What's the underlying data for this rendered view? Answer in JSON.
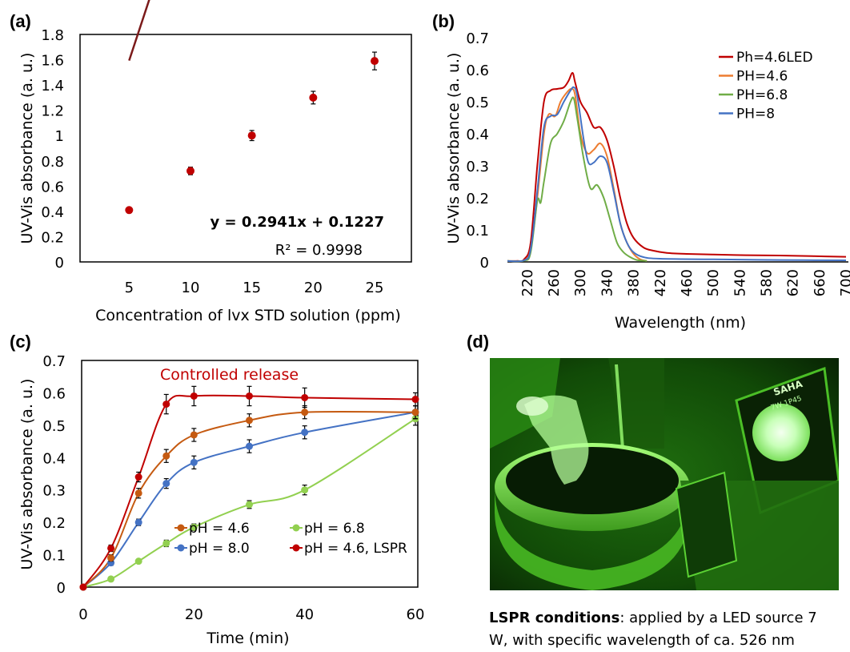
{
  "chart_data": [
    {
      "panel": "(a)",
      "type": "scatter",
      "xlabel": "Concentration of lvx STD solution (ppm)",
      "ylabel": "UV-Vis absorbance (a. u.)",
      "xticks": [
        5,
        10,
        15,
        20,
        25
      ],
      "yticks": [
        "0",
        "0.2",
        "0.4",
        "0.6",
        "0.8",
        "1",
        "1.2",
        "1.4",
        "1.6",
        "1.8"
      ],
      "xlim": [
        1,
        28
      ],
      "ylim": [
        0,
        1.8
      ],
      "x": [
        5,
        10,
        15,
        20,
        25
      ],
      "y": [
        0.41,
        0.72,
        1.0,
        1.3,
        1.59
      ],
      "yerr": [
        0.01,
        0.03,
        0.04,
        0.05,
        0.07
      ],
      "fit": {
        "slope": 0.2941,
        "intercept": 0.1227,
        "equation": "y = 0.2941x + 0.1227",
        "r2": "R² = 0.9998"
      },
      "colors": {
        "marker": "#c00000",
        "line": "#7b1a1a"
      }
    },
    {
      "panel": "(b)",
      "type": "line",
      "xlabel": "Wavelength (nm)",
      "ylabel": "UV-Vis absorbance (a. u.)",
      "xticks": [
        220,
        260,
        300,
        340,
        380,
        420,
        460,
        500,
        540,
        580,
        620,
        660,
        700
      ],
      "yticks": [
        "0",
        "0.1",
        "0.2",
        "0.3",
        "0.4",
        "0.5",
        "0.6",
        "0.7"
      ],
      "xlim": [
        190,
        700
      ],
      "ylim": [
        0,
        0.7
      ],
      "legend": "top-right",
      "series": [
        {
          "name": "Ph=4.6LED",
          "color": "#c00000",
          "x": [
            190,
            205,
            215,
            225,
            235,
            245,
            255,
            265,
            275,
            282,
            288,
            292,
            300,
            310,
            320,
            330,
            340,
            350,
            360,
            370,
            380,
            395,
            410,
            430,
            460,
            500,
            550,
            600,
            650,
            700
          ],
          "y": [
            0.003,
            0.003,
            0.008,
            0.06,
            0.3,
            0.5,
            0.535,
            0.54,
            0.545,
            0.565,
            0.59,
            0.56,
            0.5,
            0.465,
            0.42,
            0.42,
            0.38,
            0.3,
            0.2,
            0.12,
            0.075,
            0.045,
            0.035,
            0.028,
            0.025,
            0.023,
            0.021,
            0.02,
            0.018,
            0.016
          ]
        },
        {
          "name": "PH=4.6",
          "color": "#ed7d31",
          "x": [
            190,
            215,
            225,
            235,
            245,
            252,
            262,
            270,
            280,
            287,
            292,
            300,
            310,
            320,
            330,
            340,
            350,
            360,
            370,
            380,
            390,
            400
          ],
          "y": [
            0.003,
            0.005,
            0.04,
            0.2,
            0.4,
            0.46,
            0.455,
            0.5,
            0.53,
            0.54,
            0.52,
            0.4,
            0.34,
            0.35,
            0.37,
            0.33,
            0.23,
            0.12,
            0.06,
            0.025,
            0.008,
            0.003
          ]
        },
        {
          "name": "PH=6.8",
          "color": "#70ad47",
          "x": [
            190,
            215,
            225,
            235,
            240,
            245,
            255,
            265,
            275,
            285,
            290,
            295,
            305,
            315,
            325,
            335,
            345,
            355,
            365,
            375,
            385,
            400
          ],
          "y": [
            0.003,
            0.004,
            0.03,
            0.19,
            0.185,
            0.25,
            0.37,
            0.4,
            0.44,
            0.5,
            0.51,
            0.45,
            0.32,
            0.23,
            0.24,
            0.2,
            0.13,
            0.06,
            0.03,
            0.015,
            0.006,
            0.003
          ]
        },
        {
          "name": "PH=8",
          "color": "#4472c4",
          "x": [
            190,
            215,
            225,
            235,
            245,
            255,
            265,
            275,
            285,
            290,
            295,
            305,
            312,
            320,
            330,
            340,
            350,
            360,
            370,
            380,
            395,
            420,
            500,
            600,
            700
          ],
          "y": [
            0.003,
            0.005,
            0.04,
            0.22,
            0.42,
            0.455,
            0.46,
            0.5,
            0.535,
            0.545,
            0.52,
            0.38,
            0.31,
            0.31,
            0.33,
            0.31,
            0.22,
            0.12,
            0.06,
            0.03,
            0.015,
            0.01,
            0.008,
            0.006,
            0.005
          ]
        }
      ]
    },
    {
      "panel": "(c)",
      "type": "line",
      "xlabel": "Time (min)",
      "ylabel": "UV-Vis absorbance (a. u.)",
      "xticks": [
        0,
        20,
        40,
        60
      ],
      "yticks": [
        "0",
        "0.1",
        "0.2",
        "0.3",
        "0.4",
        "0.5",
        "0.6",
        "0.7"
      ],
      "xlim": [
        0,
        60
      ],
      "ylim": [
        0,
        0.7
      ],
      "annotation": {
        "text": "Controlled release",
        "color": "#c00000"
      },
      "x": [
        0,
        5,
        10,
        15,
        20,
        30,
        40,
        60
      ],
      "series": [
        {
          "name": "pH = 4.6",
          "color": "#c55a11",
          "y": [
            0,
            0.09,
            0.29,
            0.405,
            0.47,
            0.515,
            0.54,
            0.54
          ],
          "yerr": [
            0,
            0.01,
            0.015,
            0.02,
            0.02,
            0.02,
            0.02,
            0.02
          ]
        },
        {
          "name": "pH = 6.8",
          "color": "#92d050",
          "y": [
            0,
            0.025,
            0.08,
            0.135,
            0.185,
            0.255,
            0.3,
            0.52
          ],
          "yerr": [
            0,
            0.005,
            0.005,
            0.01,
            0.01,
            0.012,
            0.015,
            0.02
          ]
        },
        {
          "name": "pH = 8.0",
          "color": "#4472c4",
          "y": [
            0,
            0.075,
            0.2,
            0.32,
            0.385,
            0.435,
            0.478,
            0.54
          ],
          "yerr": [
            0,
            0.008,
            0.01,
            0.015,
            0.02,
            0.02,
            0.02,
            0.02
          ]
        },
        {
          "name": "pH = 4.6, LSPR",
          "color": "#c00000",
          "y": [
            0,
            0.12,
            0.34,
            0.565,
            0.59,
            0.59,
            0.585,
            0.58
          ],
          "yerr": [
            0,
            0.01,
            0.015,
            0.03,
            0.03,
            0.03,
            0.03,
            0.02
          ]
        }
      ]
    }
  ],
  "panel_d": {
    "label": "(d)",
    "lamp_text_1": "SAHA",
    "lamp_text_2": "7W 1P45",
    "caption_bold": "LSPR conditions",
    "caption_line1": ": applied by a LED source 7",
    "caption_line2": "W, with specific wavelength of ca. 526 nm",
    "colors": {
      "tint": "#39ff14",
      "dark": "#0c2a06"
    }
  }
}
